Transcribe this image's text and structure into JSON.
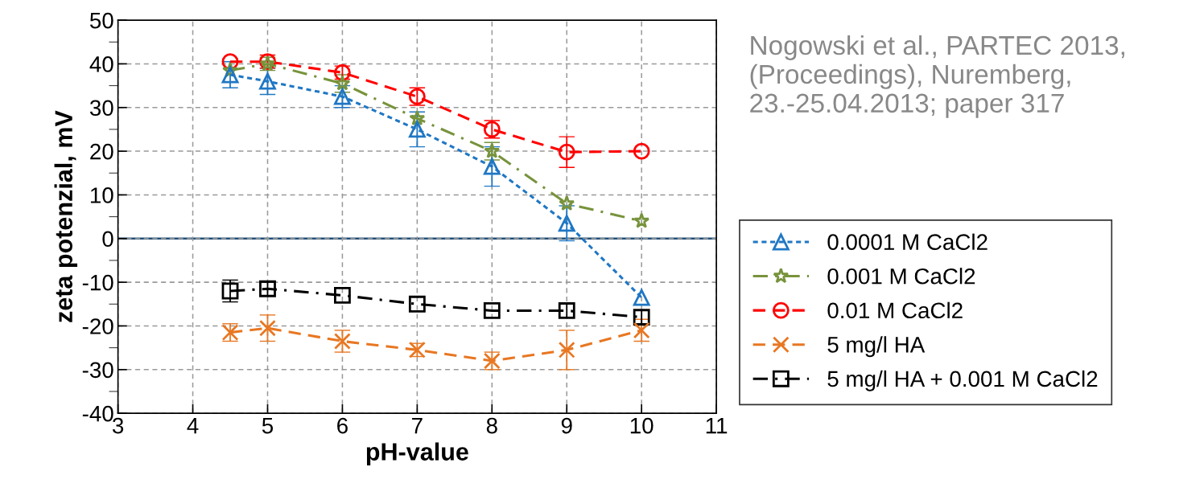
{
  "chart_data": {
    "type": "line",
    "xlabel": "pH-value",
    "ylabel": "zeta potenzial, mV",
    "x": [
      4.5,
      5,
      6,
      7,
      8,
      9,
      10
    ],
    "xlim": [
      3,
      11
    ],
    "xticks": [
      3,
      4,
      5,
      6,
      7,
      8,
      9,
      10,
      11
    ],
    "ylim": [
      -40,
      50
    ],
    "yticks": [
      -40,
      -30,
      -20,
      -10,
      0,
      10,
      20,
      30,
      40,
      50
    ],
    "grid": true,
    "legend": "right",
    "ref_lines": [
      {
        "axis": "y",
        "value": 0,
        "color": "#1f4e79",
        "line_style": "solid"
      }
    ],
    "annotations": [
      "Nogowski et al., PARTEC 2013, (Proceedings), Nuremberg, 23.-25.04.2013; paper 317"
    ],
    "series": [
      {
        "name": "0.0001 M CaCl2",
        "color": "#1f77c4",
        "marker": "triangle",
        "line_style": "dotted",
        "values": [
          37.5,
          36,
          32.5,
          25,
          16.5,
          3.5,
          -13.5
        ],
        "errors": [
          3,
          3,
          2.5,
          4,
          4.5,
          4,
          null
        ]
      },
      {
        "name": "0.001 M CaCl2",
        "color": "#77933c",
        "marker": "star",
        "line_style": "dashdot",
        "values": [
          38.5,
          40,
          35.5,
          27.5,
          20,
          8,
          4
        ],
        "errors": [
          null,
          1.5,
          2,
          null,
          2,
          null,
          null
        ]
      },
      {
        "name": "0.01 M CaCl2",
        "color": "#ff0000",
        "marker": "circle",
        "line_style": "dashed",
        "values": [
          40.5,
          40.5,
          38,
          32.5,
          25,
          19.8,
          20
        ],
        "errors": [
          null,
          1.5,
          1.5,
          2,
          2,
          3.5,
          null
        ]
      },
      {
        "name": "5 mg/l HA",
        "color": "#e87722",
        "marker": "cross",
        "line_style": "dashed",
        "values": [
          -21.5,
          -20.5,
          -23.5,
          -25.5,
          -28,
          -25.5,
          -21
        ],
        "errors": [
          2,
          3,
          2.5,
          1.5,
          2,
          4.5,
          2.5
        ]
      },
      {
        "name": "5 mg/l HA + 0.001 M CaCl2",
        "color": "#000000",
        "marker": "square",
        "line_style": "dashdot",
        "values": [
          -12,
          -11.5,
          -13,
          -15,
          -16.5,
          -16.5,
          -18
        ],
        "errors": [
          2.5,
          1.5,
          null,
          null,
          null,
          1.5,
          1.5
        ]
      }
    ]
  }
}
